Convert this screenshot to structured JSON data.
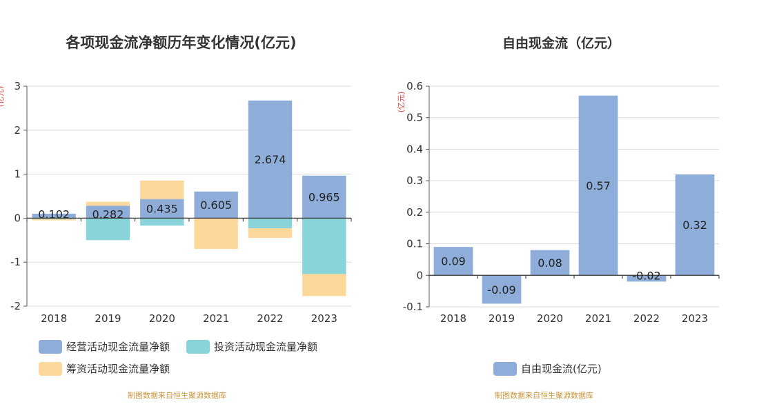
{
  "chart_data": [
    {
      "type": "bar",
      "stacked": true,
      "title": "各项现金流净额历年变化情况(亿元)",
      "ylabel": "亿元",
      "categories": [
        "2018",
        "2019",
        "2020",
        "2021",
        "2022",
        "2023"
      ],
      "ylim": [
        -2,
        3
      ],
      "yticks": [
        "3",
        "2",
        "1",
        "0",
        "-1",
        "-2"
      ],
      "grid": true,
      "legend_position": "bottom",
      "series": [
        {
          "name": "经营活动现金流量净额",
          "color": "#8eadd9",
          "values": [
            0.102,
            0.282,
            0.435,
            0.605,
            2.674,
            0.965
          ],
          "labels": [
            "0.102",
            "0.282",
            "0.435",
            "0.605",
            "2.674",
            "0.965"
          ]
        },
        {
          "name": "投资活动现金流量净额",
          "color": "#88d4d8",
          "values": [
            -0.02,
            -0.5,
            -0.17,
            0.0,
            -0.23,
            -1.27
          ]
        },
        {
          "name": "筹资活动现金流量净额",
          "color": "#fcd89b",
          "values": [
            -0.03,
            0.09,
            0.42,
            -0.7,
            -0.22,
            -0.5
          ]
        }
      ]
    },
    {
      "type": "bar",
      "title": "自由现金流（亿元）",
      "ylabel": "亿元",
      "categories": [
        "2018",
        "2019",
        "2020",
        "2021",
        "2022",
        "2023"
      ],
      "ylim": [
        -0.1,
        0.6
      ],
      "yticks": [
        "0.6",
        "0.5",
        "0.4",
        "0.3",
        "0.2",
        "0.1",
        "0",
        "-0.1"
      ],
      "grid": true,
      "legend_position": "bottom",
      "series": [
        {
          "name": "自由现金流(亿元)",
          "color": "#8eadd9",
          "values": [
            0.09,
            -0.09,
            0.08,
            0.57,
            -0.02,
            0.32
          ],
          "labels": [
            "0.09",
            "-0.09",
            "0.08",
            "0.57",
            "-0.02",
            "0.32"
          ]
        }
      ]
    }
  ],
  "source_note": "制图数据来自恒生聚源数据库"
}
